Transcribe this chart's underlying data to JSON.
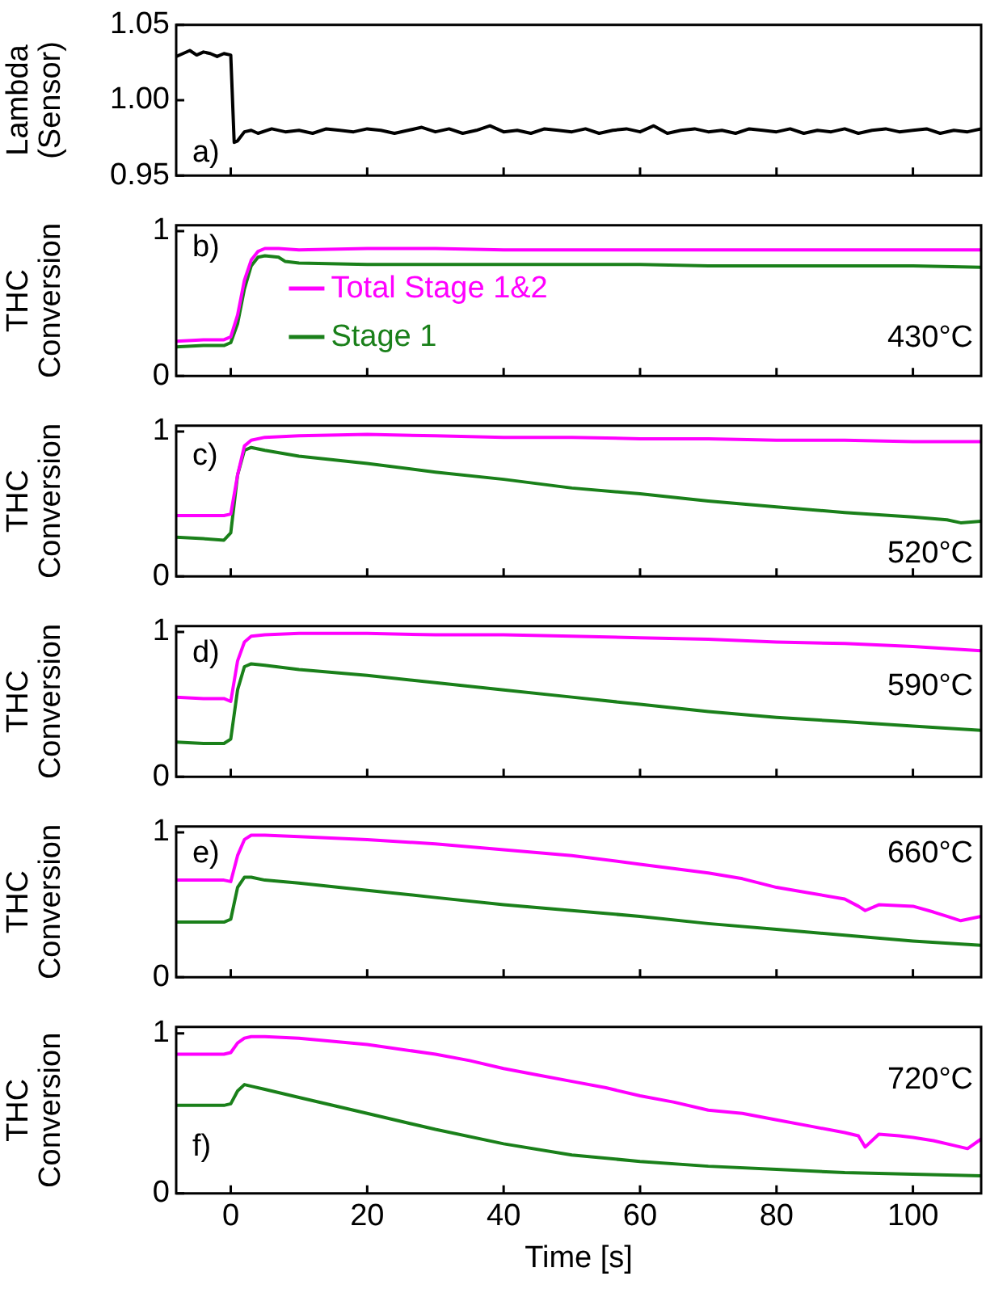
{
  "chart_data": [
    {
      "type": "line",
      "ylabel": "Lambda (Sensor)",
      "xlim": [
        -8,
        110
      ],
      "xticks": [
        0,
        20,
        40,
        60,
        80,
        100
      ],
      "ylim": [
        0.95,
        1.05
      ],
      "yticks": [
        0.95,
        {
          "value": 1.0,
          "label": "1.00"
        },
        1.05
      ],
      "tick_labels": "y",
      "grid": false,
      "legend": false,
      "annotations": [
        "a)"
      ],
      "series": [
        {
          "color": "#000000",
          "x": [
            -8,
            -7,
            -6,
            -5,
            -4,
            -3,
            -2,
            -1,
            0,
            0.5,
            1,
            2,
            3,
            4,
            6,
            8,
            10,
            12,
            14,
            16,
            18,
            20,
            22,
            24,
            26,
            28,
            30,
            32,
            34,
            36,
            38,
            40,
            42,
            44,
            46,
            48,
            50,
            52,
            54,
            56,
            58,
            60,
            62,
            64,
            66,
            68,
            70,
            72,
            74,
            76,
            78,
            80,
            82,
            84,
            86,
            88,
            90,
            92,
            94,
            96,
            98,
            100,
            102,
            104,
            106,
            108,
            110
          ],
          "values": [
            1.029,
            1.031,
            1.033,
            1.03,
            1.032,
            1.031,
            1.029,
            1.031,
            1.03,
            0.972,
            0.973,
            0.979,
            0.98,
            0.978,
            0.981,
            0.979,
            0.98,
            0.978,
            0.981,
            0.98,
            0.979,
            0.981,
            0.98,
            0.978,
            0.98,
            0.982,
            0.979,
            0.981,
            0.978,
            0.98,
            0.983,
            0.979,
            0.98,
            0.978,
            0.981,
            0.98,
            0.979,
            0.981,
            0.978,
            0.98,
            0.981,
            0.979,
            0.983,
            0.978,
            0.98,
            0.981,
            0.979,
            0.98,
            0.978,
            0.981,
            0.98,
            0.979,
            0.981,
            0.978,
            0.98,
            0.979,
            0.981,
            0.978,
            0.98,
            0.981,
            0.979,
            0.98,
            0.981,
            0.978,
            0.98,
            0.979,
            0.981
          ]
        }
      ]
    },
    {
      "type": "line",
      "ylabel": "THC Conversion",
      "xlim": [
        -8,
        110
      ],
      "xticks": [
        0,
        20,
        40,
        60,
        80,
        100
      ],
      "ylim": [
        0,
        1.04
      ],
      "yticks": [
        0,
        1
      ],
      "tick_labels": "y",
      "grid": false,
      "legend": "left",
      "annotations": [
        "b)",
        "430°C"
      ],
      "series": [
        {
          "name": "Total Stage 1&2",
          "color": "#ff00ff",
          "x": [
            -8,
            -4,
            -1,
            0,
            1,
            2,
            3,
            4,
            5,
            7,
            10,
            20,
            30,
            40,
            50,
            60,
            70,
            80,
            90,
            100,
            110
          ],
          "values": [
            0.24,
            0.25,
            0.25,
            0.27,
            0.42,
            0.66,
            0.8,
            0.86,
            0.88,
            0.88,
            0.87,
            0.88,
            0.88,
            0.87,
            0.87,
            0.87,
            0.87,
            0.87,
            0.87,
            0.87,
            0.87
          ]
        },
        {
          "name": "Stage 1",
          "color": "#1a801a",
          "x": [
            -8,
            -4,
            -1,
            0,
            1,
            2,
            3,
            4,
            5,
            7,
            8,
            10,
            20,
            30,
            40,
            50,
            60,
            70,
            80,
            90,
            100,
            110
          ],
          "values": [
            0.2,
            0.21,
            0.21,
            0.23,
            0.36,
            0.6,
            0.76,
            0.82,
            0.83,
            0.82,
            0.79,
            0.78,
            0.77,
            0.77,
            0.77,
            0.77,
            0.77,
            0.76,
            0.76,
            0.76,
            0.76,
            0.75
          ]
        }
      ]
    },
    {
      "type": "line",
      "ylabel": "THC Conversion",
      "xlim": [
        -8,
        110
      ],
      "xticks": [
        0,
        20,
        40,
        60,
        80,
        100
      ],
      "ylim": [
        0,
        1.04
      ],
      "yticks": [
        0,
        1
      ],
      "tick_labels": "y",
      "grid": false,
      "legend": false,
      "annotations": [
        "c)",
        "520°C"
      ],
      "series": [
        {
          "color": "#ff00ff",
          "x": [
            -8,
            -1,
            0,
            1,
            2,
            3,
            5,
            10,
            20,
            30,
            40,
            50,
            60,
            70,
            80,
            90,
            100,
            110
          ],
          "values": [
            0.42,
            0.42,
            0.43,
            0.7,
            0.9,
            0.94,
            0.96,
            0.97,
            0.98,
            0.97,
            0.96,
            0.96,
            0.95,
            0.95,
            0.94,
            0.94,
            0.93,
            0.93
          ]
        },
        {
          "color": "#1a801a",
          "x": [
            -8,
            -4,
            -1,
            0,
            1,
            2,
            3,
            5,
            10,
            20,
            30,
            40,
            50,
            60,
            70,
            80,
            90,
            100,
            105,
            107,
            110
          ],
          "values": [
            0.27,
            0.26,
            0.25,
            0.3,
            0.7,
            0.87,
            0.89,
            0.87,
            0.83,
            0.78,
            0.72,
            0.67,
            0.61,
            0.57,
            0.52,
            0.48,
            0.44,
            0.41,
            0.39,
            0.37,
            0.38
          ]
        }
      ]
    },
    {
      "type": "line",
      "ylabel": "THC Conversion",
      "xlim": [
        -8,
        110
      ],
      "xticks": [
        0,
        20,
        40,
        60,
        80,
        100
      ],
      "ylim": [
        0,
        1.04
      ],
      "yticks": [
        0,
        1
      ],
      "tick_labels": "y",
      "grid": false,
      "legend": false,
      "annotations": [
        "d)",
        "590°C"
      ],
      "series": [
        {
          "color": "#ff00ff",
          "x": [
            -8,
            -4,
            -1,
            0,
            1,
            2,
            3,
            5,
            10,
            20,
            30,
            40,
            50,
            60,
            70,
            80,
            90,
            100,
            110
          ],
          "values": [
            0.55,
            0.54,
            0.54,
            0.52,
            0.8,
            0.93,
            0.97,
            0.98,
            0.99,
            0.99,
            0.98,
            0.98,
            0.97,
            0.96,
            0.95,
            0.93,
            0.92,
            0.9,
            0.87
          ]
        },
        {
          "color": "#1a801a",
          "x": [
            -8,
            -4,
            -1,
            0,
            1,
            2,
            3,
            5,
            10,
            20,
            30,
            40,
            50,
            60,
            70,
            80,
            90,
            100,
            110
          ],
          "values": [
            0.24,
            0.23,
            0.23,
            0.26,
            0.6,
            0.76,
            0.78,
            0.77,
            0.74,
            0.7,
            0.65,
            0.6,
            0.55,
            0.5,
            0.45,
            0.41,
            0.38,
            0.35,
            0.32
          ]
        }
      ]
    },
    {
      "type": "line",
      "ylabel": "THC Conversion",
      "xlim": [
        -8,
        110
      ],
      "xticks": [
        0,
        20,
        40,
        60,
        80,
        100
      ],
      "ylim": [
        0,
        1.04
      ],
      "yticks": [
        0,
        1
      ],
      "tick_labels": "y",
      "grid": false,
      "legend": false,
      "annotations": [
        "e)",
        "660°C"
      ],
      "series": [
        {
          "color": "#ff00ff",
          "x": [
            -8,
            -4,
            -1,
            0,
            1,
            2,
            3,
            5,
            10,
            20,
            30,
            40,
            50,
            60,
            70,
            75,
            80,
            85,
            90,
            92,
            93,
            95,
            100,
            103,
            105,
            107,
            110
          ],
          "values": [
            0.67,
            0.67,
            0.67,
            0.66,
            0.84,
            0.95,
            0.98,
            0.98,
            0.97,
            0.95,
            0.92,
            0.88,
            0.84,
            0.78,
            0.72,
            0.68,
            0.62,
            0.58,
            0.54,
            0.49,
            0.46,
            0.5,
            0.49,
            0.45,
            0.42,
            0.39,
            0.42
          ]
        },
        {
          "color": "#1a801a",
          "x": [
            -8,
            -4,
            -1,
            0,
            1,
            2,
            3,
            5,
            10,
            20,
            30,
            40,
            50,
            60,
            70,
            80,
            90,
            100,
            110
          ],
          "values": [
            0.38,
            0.38,
            0.38,
            0.4,
            0.62,
            0.69,
            0.69,
            0.67,
            0.65,
            0.6,
            0.55,
            0.5,
            0.46,
            0.42,
            0.37,
            0.33,
            0.29,
            0.25,
            0.22
          ]
        }
      ]
    },
    {
      "type": "line",
      "xlabel": "Time [s]",
      "ylabel": "THC Conversion",
      "xlim": [
        -8,
        110
      ],
      "xticks": [
        0,
        20,
        40,
        60,
        80,
        100
      ],
      "ylim": [
        0,
        1.04
      ],
      "yticks": [
        0,
        1
      ],
      "grid": false,
      "legend": false,
      "annotations": [
        "f)",
        "720°C"
      ],
      "series": [
        {
          "color": "#ff00ff",
          "x": [
            -8,
            -4,
            -1,
            0,
            1,
            2,
            3,
            5,
            10,
            20,
            30,
            35,
            40,
            45,
            50,
            55,
            60,
            65,
            70,
            75,
            80,
            85,
            90,
            92,
            93,
            95,
            98,
            100,
            103,
            106,
            108,
            110
          ],
          "values": [
            0.87,
            0.87,
            0.87,
            0.88,
            0.94,
            0.97,
            0.98,
            0.98,
            0.97,
            0.93,
            0.87,
            0.83,
            0.78,
            0.74,
            0.7,
            0.66,
            0.61,
            0.57,
            0.52,
            0.5,
            0.46,
            0.42,
            0.38,
            0.36,
            0.29,
            0.37,
            0.36,
            0.35,
            0.33,
            0.3,
            0.28,
            0.34
          ]
        },
        {
          "color": "#1a801a",
          "x": [
            -8,
            -4,
            -1,
            0,
            1,
            2,
            3,
            5,
            10,
            20,
            30,
            40,
            50,
            60,
            70,
            80,
            90,
            100,
            110
          ],
          "values": [
            0.55,
            0.55,
            0.55,
            0.56,
            0.64,
            0.68,
            0.67,
            0.65,
            0.6,
            0.5,
            0.4,
            0.31,
            0.24,
            0.2,
            0.17,
            0.15,
            0.13,
            0.12,
            0.11
          ]
        }
      ]
    }
  ]
}
